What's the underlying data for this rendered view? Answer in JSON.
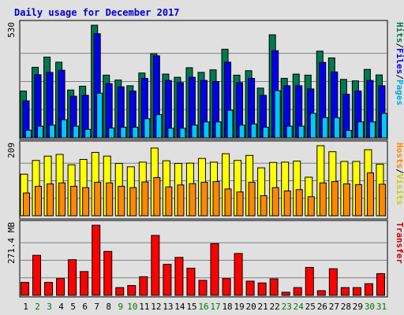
{
  "chart_data": {
    "type": "bar",
    "title": "Daily usage for December 2017",
    "categories": [
      "1",
      "2",
      "3",
      "4",
      "5",
      "6",
      "7",
      "8",
      "9",
      "10",
      "11",
      "12",
      "13",
      "14",
      "15",
      "16",
      "17",
      "18",
      "19",
      "20",
      "21",
      "22",
      "23",
      "24",
      "25",
      "26",
      "27",
      "28",
      "29",
      "30",
      "31"
    ],
    "weekend_days": [
      "2",
      "3",
      "9",
      "10",
      "16",
      "17",
      "23",
      "24",
      "30",
      "31"
    ],
    "colors": {
      "hits": "#007850",
      "files": "#0000ee",
      "pages": "#00c8ff",
      "visits": "#ffff00",
      "hosts": "#ff8800",
      "transfer": "#ff0000",
      "title": "#0000cc",
      "weekend_label": "#007800",
      "weekday_label": "#000000",
      "grid": "#808080"
    },
    "panels": [
      {
        "name": "hits-files-pages",
        "ymax_label": "530",
        "ylim": [
          0,
          530
        ],
        "right_labels": [
          "Hits",
          "/",
          "Files",
          "/",
          "Pages"
        ],
        "right_colors": [
          "#007850",
          "#000000",
          "#0000ee",
          "#000000",
          "#00aadd"
        ],
        "series": [
          {
            "key": "hits",
            "values": [
              220,
              332,
              380,
              356,
              225,
              243,
              530,
              295,
              272,
              245,
              305,
              396,
              300,
              285,
              330,
              308,
              320,
              417,
              295,
              316,
              234,
              485,
              280,
              300,
              295,
              408,
              376,
              275,
              268,
              322,
              296
            ]
          },
          {
            "key": "files",
            "values": [
              174,
              297,
              308,
              318,
              196,
              200,
              490,
              255,
              240,
              220,
              280,
              386,
              270,
              260,
              285,
              270,
              265,
              356,
              260,
              280,
              200,
              410,
              245,
              245,
              230,
              355,
              310,
              205,
              220,
              270,
              245
            ]
          },
          {
            "key": "pages",
            "values": [
              36,
              55,
              60,
              85,
              55,
              40,
              210,
              46,
              50,
              50,
              90,
              109,
              45,
              45,
              60,
              75,
              75,
              130,
              60,
              65,
              50,
              222,
              55,
              55,
              115,
              95,
              95,
              35,
              75,
              75,
              115
            ]
          }
        ]
      },
      {
        "name": "visits-hosts",
        "ymax_label": "209",
        "ylim": [
          0,
          209
        ],
        "right_labels": [
          "Hosts",
          "/",
          "Visits"
        ],
        "right_colors": [
          "#ff8800",
          "#000000",
          "#cccc00"
        ],
        "series": [
          {
            "key": "visits",
            "values": [
              124,
              165,
              178,
              183,
              152,
              168,
              189,
              178,
              156,
              146,
              160,
              202,
              164,
              156,
              157,
              171,
              160,
              185,
              165,
              180,
              143,
              159,
              160,
              163,
              115,
              209,
              191,
              162,
              162,
              197,
              154
            ]
          },
          {
            "key": "hosts",
            "values": [
              68,
              88,
              95,
              98,
              88,
              84,
              100,
              98,
              88,
              84,
              101,
              114,
              86,
              92,
              96,
              100,
              102,
              80,
              71,
              100,
              60,
              84,
              74,
              78,
              57,
              98,
              102,
              95,
              93,
              128,
              94
            ]
          }
        ]
      },
      {
        "name": "transfer",
        "ymax_label": "271.4 MB",
        "ylim": [
          0,
          271.4
        ],
        "right_labels": [
          "Transfer"
        ],
        "right_colors": [
          "#cc0000"
        ],
        "series": [
          {
            "key": "transfer",
            "values": [
              50,
              155,
              50,
              65,
              138,
              92,
              271.4,
              170,
              30,
              38,
              72,
              232,
              120,
              147,
              105,
              58,
              200,
              65,
              162,
              55,
              48,
              64,
              12,
              30,
              108,
              18,
              103,
              30,
              30,
              45,
              84
            ]
          }
        ]
      }
    ]
  }
}
